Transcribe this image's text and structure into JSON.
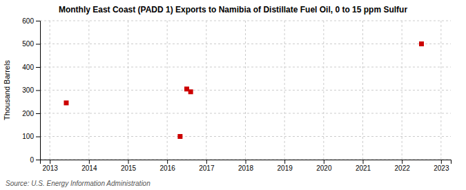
{
  "chart_data": {
    "type": "scatter",
    "title": "Monthly East Coast (PADD 1) Exports to Namibia of Distillate Fuel Oil, 0 to 15 ppm Sulfur",
    "y_label": "Thousand Barrels",
    "source": "Source: U.S. Energy Information Administration",
    "x": [
      2013.42,
      2016.33,
      2016.5,
      2016.6,
      2022.5
    ],
    "values": [
      245,
      100,
      305,
      293,
      500
    ],
    "color": "#cc0000",
    "marker": "square",
    "xlim": [
      2012.75,
      2023.25
    ],
    "xticks": [
      2013,
      2014,
      2015,
      2016,
      2017,
      2018,
      2019,
      2020,
      2021,
      2022,
      2023
    ],
    "ylim": [
      0,
      600
    ],
    "yticks": [
      0,
      100,
      200,
      300,
      400,
      500,
      600
    ],
    "grid": true
  }
}
